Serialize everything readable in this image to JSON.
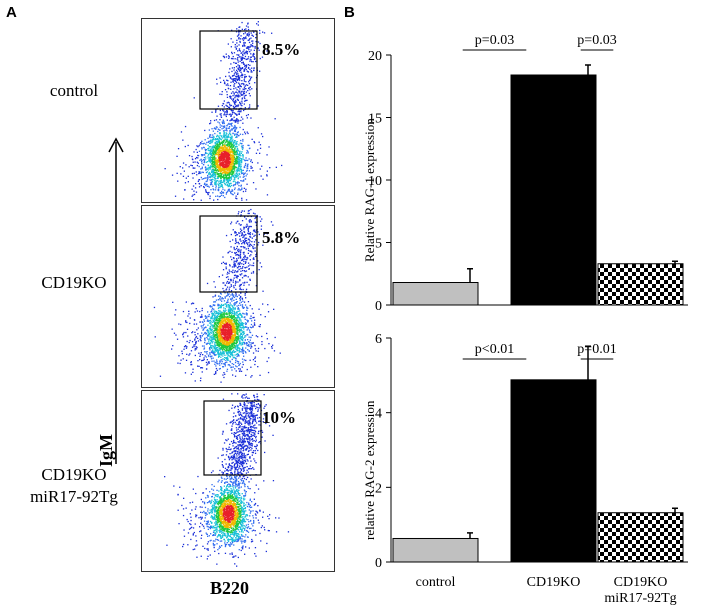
{
  "panels": {
    "a": {
      "letter": "A",
      "x_axis_label": "B220",
      "y_axis_label": "IgM",
      "rows": [
        {
          "label": "control",
          "gate_percent": "8.5%"
        },
        {
          "label": "CD19KO",
          "gate_percent": "5.8%"
        },
        {
          "label": "CD19KO\nmiR17-92Tg",
          "gate_percent": "10%"
        }
      ]
    },
    "b": {
      "letter": "B"
    }
  },
  "colors": {
    "control_bar": "#c0c0c0",
    "cd19ko_bar": "#000000",
    "tg_bar_pattern": "checkered black/white",
    "axis": "#000000"
  },
  "chart_data": [
    {
      "type": "bar",
      "title": "",
      "xlabel": "",
      "ylabel": "Relative  RAG-1 expression",
      "categories": [
        "control",
        "CD19KO",
        "CD19KO miR17-92Tg"
      ],
      "values": [
        1.8,
        18.4,
        3.3
      ],
      "errors": [
        1.1,
        0.8,
        0.2
      ],
      "ylim": [
        0,
        20
      ],
      "yticks": [
        0,
        5,
        10,
        15,
        20
      ],
      "comparisons": [
        {
          "from": 0,
          "to": 1,
          "label": "p=0.03"
        },
        {
          "from": 1,
          "to": 2,
          "label": "p=0.03"
        }
      ]
    },
    {
      "type": "bar",
      "title": "",
      "xlabel": "",
      "ylabel": "relative  RAG-2 expression",
      "categories": [
        "control",
        "CD19KO",
        "CD19KO miR17-92Tg"
      ],
      "category_labels": [
        "control",
        "CD19KO",
        "CD19KO\nmiR17-92Tg"
      ],
      "values": [
        0.63,
        4.88,
        1.32
      ],
      "errors": [
        0.15,
        0.9,
        0.12
      ],
      "ylim": [
        0,
        6
      ],
      "yticks": [
        0,
        2,
        4,
        6
      ],
      "comparisons": [
        {
          "from": 0,
          "to": 1,
          "label": "p<0.01"
        },
        {
          "from": 1,
          "to": 2,
          "label": "p=0.01"
        }
      ]
    }
  ]
}
